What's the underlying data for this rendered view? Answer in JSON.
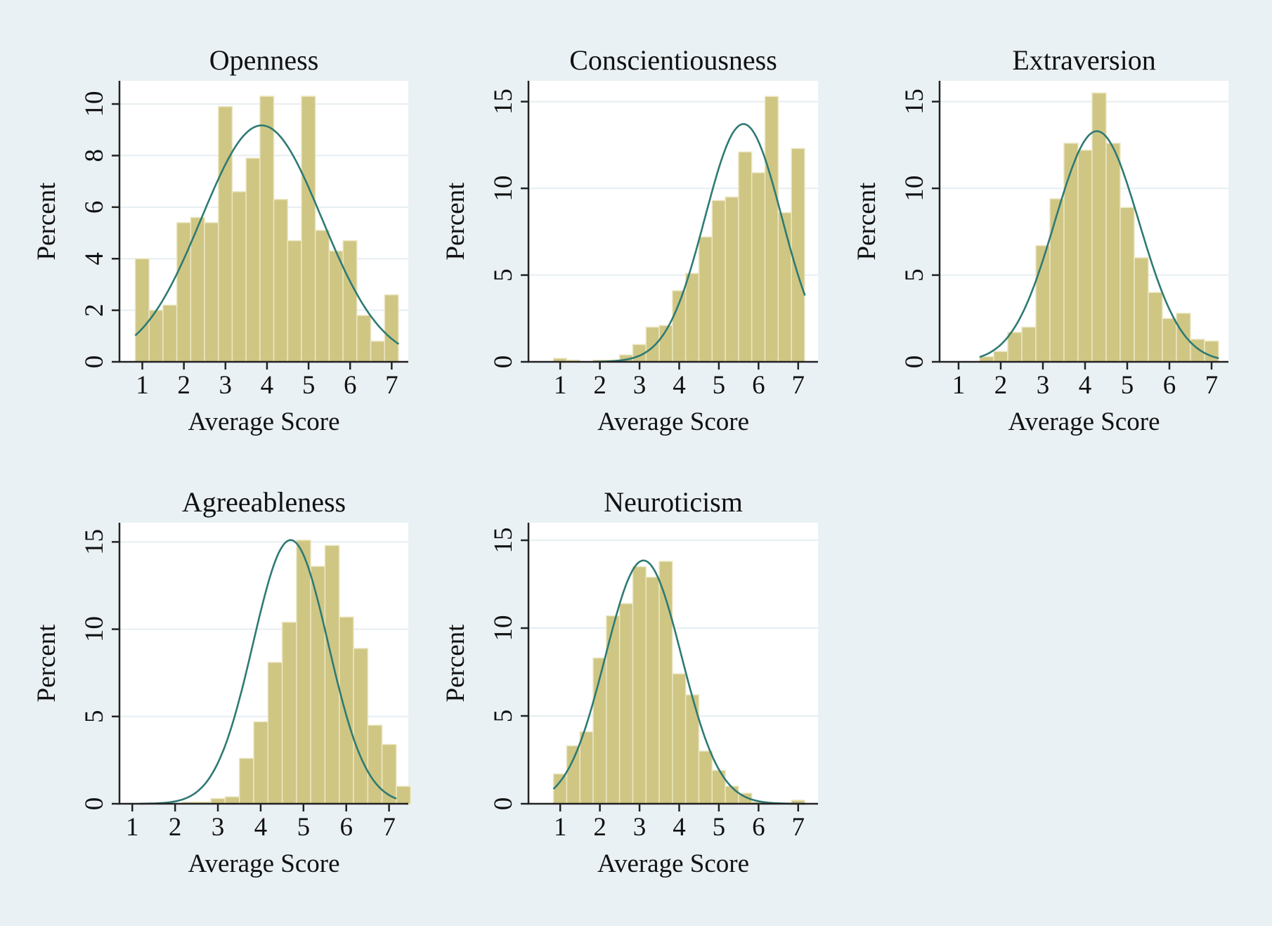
{
  "colors": {
    "background": "#eaf1f4",
    "plot_area": "#ffffff",
    "bar_fill": "#cfc684",
    "bar_edge": "#ece7c4",
    "density_line": "#2e7a73",
    "gridline": "#e6eef1",
    "axis": "#222222"
  },
  "chart_data": [
    {
      "type": "bar",
      "subtype": "histogram-with-normal-density",
      "title": "Openness",
      "xlabel": "Average Score",
      "ylabel": "Percent",
      "xlim": [
        0.45,
        7.4
      ],
      "ylim": [
        0,
        10.9
      ],
      "xticks": [
        1,
        2,
        3,
        4,
        5,
        6,
        7
      ],
      "yticks": [
        0,
        2,
        4,
        6,
        8,
        10
      ],
      "grid": true,
      "bin_start": 0.83,
      "bin_width": 0.3333,
      "values": [
        4.0,
        2.0,
        2.2,
        5.4,
        5.6,
        5.4,
        9.9,
        6.6,
        7.9,
        10.3,
        6.3,
        4.7,
        10.3,
        5.1,
        4.3,
        4.7,
        1.8,
        0.8,
        2.6
      ],
      "density": {
        "mean": 3.87,
        "sd": 1.45,
        "range": [
          0.83,
          7.17
        ]
      }
    },
    {
      "type": "bar",
      "subtype": "histogram-with-normal-density",
      "title": "Conscientiousness",
      "xlabel": "Average Score",
      "ylabel": "Percent",
      "xlim": [
        0.2,
        7.5
      ],
      "ylim": [
        0,
        16.2
      ],
      "xticks": [
        1,
        2,
        3,
        4,
        5,
        6,
        7
      ],
      "yticks": [
        0,
        5,
        10,
        15
      ],
      "grid": true,
      "bin_start": 0.83,
      "bin_width": 0.3333,
      "values": [
        0.2,
        0.1,
        0.0,
        0.1,
        0.1,
        0.4,
        1.0,
        2.0,
        2.1,
        4.1,
        5.1,
        7.2,
        9.3,
        9.5,
        12.1,
        10.9,
        15.3,
        8.6,
        12.3
      ],
      "density": {
        "mean": 5.62,
        "sd": 0.97,
        "range": [
          1.83,
          7.17
        ]
      }
    },
    {
      "type": "bar",
      "subtype": "histogram-with-normal-density",
      "title": "Extraversion",
      "xlabel": "Average Score",
      "ylabel": "Percent",
      "xlim": [
        0.55,
        7.4
      ],
      "ylim": [
        0,
        16.2
      ],
      "xticks": [
        1,
        2,
        3,
        4,
        5,
        6,
        7
      ],
      "yticks": [
        0,
        5,
        10,
        15
      ],
      "grid": true,
      "bin_start": 1.5,
      "bin_width": 0.3333,
      "values": [
        0.3,
        0.6,
        1.7,
        2.0,
        6.7,
        9.4,
        12.6,
        12.2,
        15.5,
        12.6,
        8.9,
        6.0,
        4.0,
        2.5,
        2.8,
        1.3,
        1.2
      ],
      "density": {
        "mean": 4.28,
        "sd": 1.0,
        "range": [
          1.5,
          7.17
        ]
      }
    },
    {
      "type": "bar",
      "subtype": "histogram-with-normal-density",
      "title": "Agreeableness",
      "xlabel": "Average Score",
      "ylabel": "Percent",
      "xlim": [
        0.7,
        7.45
      ],
      "ylim": [
        0,
        16.1
      ],
      "xticks": [
        1,
        2,
        3,
        4,
        5,
        6,
        7
      ],
      "yticks": [
        0,
        5,
        10,
        15
      ],
      "grid": true,
      "bin_start": 1.17,
      "bin_width": 0.3333,
      "values": [
        0.0,
        0.0,
        0.0,
        0.1,
        0.1,
        0.3,
        0.4,
        2.6,
        4.7,
        8.1,
        10.4,
        15.1,
        13.6,
        14.8,
        10.7,
        8.9,
        4.5,
        3.4,
        1.0
      ],
      "density": {
        "mean": 4.7,
        "sd": 0.88,
        "range": [
          1.17,
          7.17
        ]
      }
    },
    {
      "type": "bar",
      "subtype": "histogram-with-normal-density",
      "title": "Neuroticism",
      "xlabel": "Average Score",
      "ylabel": "Percent",
      "xlim": [
        0.2,
        7.5
      ],
      "ylim": [
        0,
        16.0
      ],
      "xticks": [
        1,
        2,
        3,
        4,
        5,
        6,
        7
      ],
      "yticks": [
        0,
        5,
        10,
        15
      ],
      "grid": true,
      "bin_start": 0.83,
      "bin_width": 0.3333,
      "values": [
        1.7,
        3.3,
        4.1,
        8.3,
        10.7,
        11.4,
        13.5,
        12.9,
        13.8,
        7.4,
        6.2,
        3.0,
        1.9,
        1.0,
        0.6,
        0.1,
        0.0,
        0.0,
        0.2
      ],
      "density": {
        "mean": 3.1,
        "sd": 0.96,
        "range": [
          0.83,
          7.17
        ]
      }
    }
  ]
}
